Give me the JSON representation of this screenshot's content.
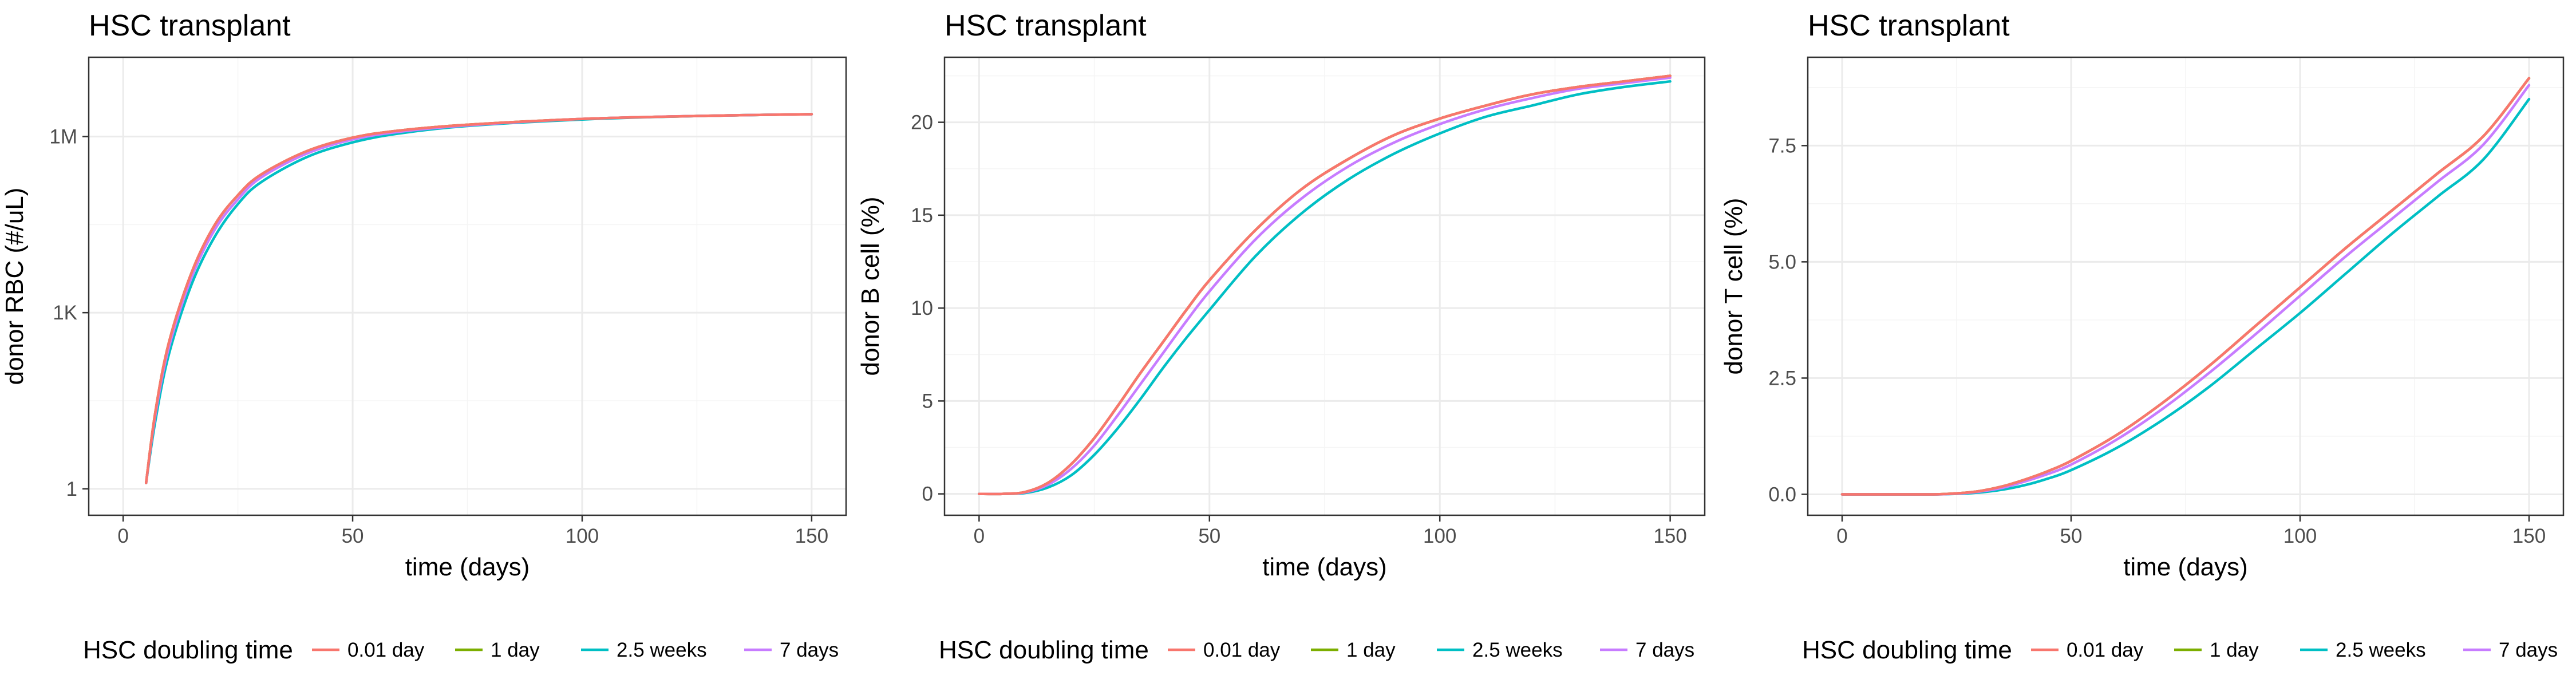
{
  "chart_data": [
    {
      "type": "line",
      "title": "HSC transplant",
      "xlabel": "time (days)",
      "ylabel": "donor RBC (#/uL)",
      "yscale": "log10",
      "xlim": [
        -7.5,
        157.5
      ],
      "ylim_log10": [
        -0.45,
        7.35
      ],
      "x_ticks": [
        0,
        50,
        100,
        150
      ],
      "x_tick_labels": [
        "0",
        "50",
        "100",
        "150"
      ],
      "y_ticks_log10": [
        0,
        3,
        6
      ],
      "y_tick_labels": [
        "1",
        "1K",
        "1M"
      ],
      "grid": true,
      "legend": {
        "position": "bottom",
        "title": "HSC doubling time",
        "entries": [
          "0.01 day",
          "1 day",
          "2.5 weeks",
          "7 days"
        ]
      },
      "series": [
        {
          "name": "0.01 day",
          "color": "#F8766D",
          "x": [
            5,
            7,
            10,
            15,
            20,
            25,
            30,
            40,
            50,
            60,
            75,
            100,
            125,
            150
          ],
          "log10_y": [
            0.1,
            1.3,
            2.5,
            3.7,
            4.5,
            5.0,
            5.35,
            5.75,
            5.98,
            6.1,
            6.2,
            6.3,
            6.35,
            6.38
          ]
        },
        {
          "name": "1 day",
          "color": "#7CAE00",
          "x": [
            5,
            7,
            10,
            15,
            20,
            25,
            30,
            40,
            50,
            60,
            75,
            100,
            125,
            150
          ],
          "log10_y": [
            0.1,
            1.3,
            2.5,
            3.7,
            4.5,
            5.0,
            5.35,
            5.75,
            5.98,
            6.1,
            6.2,
            6.3,
            6.35,
            6.38
          ]
        },
        {
          "name": "2.5 weeks",
          "color": "#00BFC4",
          "x": [
            5,
            7,
            10,
            15,
            20,
            25,
            30,
            40,
            50,
            60,
            75,
            100,
            125,
            150
          ],
          "log10_y": [
            0.1,
            1.15,
            2.3,
            3.5,
            4.3,
            4.85,
            5.22,
            5.65,
            5.9,
            6.05,
            6.18,
            6.29,
            6.35,
            6.38
          ]
        },
        {
          "name": "7 days",
          "color": "#C77CFF",
          "x": [
            5,
            7,
            10,
            15,
            20,
            25,
            30,
            40,
            50,
            60,
            75,
            100,
            125,
            150
          ],
          "log10_y": [
            0.1,
            1.25,
            2.42,
            3.62,
            4.42,
            4.93,
            5.3,
            5.71,
            5.95,
            6.08,
            6.19,
            6.3,
            6.35,
            6.38
          ]
        }
      ]
    },
    {
      "type": "line",
      "title": "HSC transplant",
      "xlabel": "time (days)",
      "ylabel": "donor B cell (%)",
      "xlim": [
        -7.5,
        157.5
      ],
      "ylim": [
        -1.15,
        23.5
      ],
      "x_ticks": [
        0,
        50,
        100,
        150
      ],
      "x_tick_labels": [
        "0",
        "50",
        "100",
        "150"
      ],
      "y_ticks": [
        0,
        5,
        10,
        15,
        20
      ],
      "y_tick_labels": [
        "0",
        "5",
        "10",
        "15",
        "20"
      ],
      "grid": true,
      "legend": {
        "position": "bottom",
        "title": "HSC doubling time",
        "entries": [
          "0.01 day",
          "1 day",
          "2.5 weeks",
          "7 days"
        ]
      },
      "series": [
        {
          "name": "0.01 day",
          "color": "#F8766D",
          "x": [
            0,
            5,
            10,
            15,
            20,
            25,
            30,
            35,
            40,
            45,
            50,
            60,
            70,
            80,
            90,
            100,
            110,
            120,
            130,
            140,
            150
          ],
          "y": [
            0,
            0,
            0.1,
            0.6,
            1.6,
            3.0,
            4.7,
            6.5,
            8.2,
            9.9,
            11.5,
            14.2,
            16.4,
            18.0,
            19.3,
            20.2,
            20.9,
            21.5,
            21.9,
            22.2,
            22.5
          ]
        },
        {
          "name": "1 day",
          "color": "#7CAE00",
          "x": [
            0,
            5,
            10,
            15,
            20,
            25,
            30,
            35,
            40,
            45,
            50,
            60,
            70,
            80,
            90,
            100,
            110,
            120,
            130,
            140,
            150
          ],
          "y": [
            0,
            0,
            0.1,
            0.6,
            1.6,
            3.0,
            4.7,
            6.5,
            8.2,
            9.9,
            11.5,
            14.2,
            16.4,
            18.0,
            19.3,
            20.2,
            20.9,
            21.5,
            21.9,
            22.2,
            22.5
          ]
        },
        {
          "name": "2.5 weeks",
          "color": "#00BFC4",
          "x": [
            0,
            5,
            10,
            15,
            20,
            25,
            30,
            35,
            40,
            45,
            50,
            60,
            70,
            80,
            90,
            100,
            110,
            120,
            130,
            140,
            150
          ],
          "y": [
            0,
            0,
            0.05,
            0.35,
            1.0,
            2.1,
            3.5,
            5.1,
            6.8,
            8.4,
            9.9,
            12.8,
            15.1,
            16.9,
            18.3,
            19.4,
            20.3,
            20.9,
            21.5,
            21.9,
            22.2
          ]
        },
        {
          "name": "7 days",
          "color": "#C77CFF",
          "x": [
            0,
            5,
            10,
            15,
            20,
            25,
            30,
            35,
            40,
            45,
            50,
            60,
            70,
            80,
            90,
            100,
            110,
            120,
            130,
            140,
            150
          ],
          "y": [
            0,
            0,
            0.08,
            0.5,
            1.35,
            2.6,
            4.2,
            5.9,
            7.6,
            9.3,
            10.9,
            13.7,
            15.9,
            17.6,
            18.9,
            19.9,
            20.7,
            21.3,
            21.8,
            22.1,
            22.4
          ]
        }
      ]
    },
    {
      "type": "line",
      "title": "HSC transplant",
      "xlabel": "time (days)",
      "ylabel": "donor T cell (%)",
      "xlim": [
        -7.5,
        157.5
      ],
      "ylim": [
        -0.45,
        9.4
      ],
      "x_ticks": [
        0,
        50,
        100,
        150
      ],
      "x_tick_labels": [
        "0",
        "50",
        "100",
        "150"
      ],
      "y_ticks": [
        0,
        2.5,
        5,
        7.5
      ],
      "y_tick_labels": [
        "0.0",
        "2.5",
        "5.0",
        "7.5"
      ],
      "grid": true,
      "legend": {
        "position": "bottom",
        "title": "HSC doubling time",
        "entries": [
          "0.01 day",
          "1 day",
          "2.5 weeks",
          "7 days"
        ]
      },
      "series": [
        {
          "name": "0.01 day",
          "color": "#F8766D",
          "x": [
            0,
            10,
            20,
            25,
            30,
            35,
            40,
            45,
            50,
            60,
            70,
            80,
            90,
            100,
            110,
            120,
            130,
            140,
            150
          ],
          "y": [
            0,
            0,
            0,
            0.02,
            0.07,
            0.17,
            0.32,
            0.5,
            0.72,
            1.28,
            1.97,
            2.75,
            3.6,
            4.45,
            5.3,
            6.1,
            6.9,
            7.7,
            8.95
          ]
        },
        {
          "name": "1 day",
          "color": "#7CAE00",
          "x": [
            0,
            10,
            20,
            25,
            30,
            35,
            40,
            45,
            50,
            60,
            70,
            80,
            90,
            100,
            110,
            120,
            130,
            140,
            150
          ],
          "y": [
            0,
            0,
            0,
            0.02,
            0.07,
            0.17,
            0.32,
            0.5,
            0.72,
            1.28,
            1.97,
            2.75,
            3.6,
            4.45,
            5.3,
            6.1,
            6.9,
            7.7,
            8.95
          ]
        },
        {
          "name": "2.5 weeks",
          "color": "#00BFC4",
          "x": [
            0,
            10,
            20,
            25,
            30,
            35,
            40,
            45,
            50,
            60,
            70,
            80,
            90,
            100,
            110,
            120,
            130,
            140,
            150
          ],
          "y": [
            0,
            0,
            0,
            0.01,
            0.04,
            0.1,
            0.2,
            0.34,
            0.52,
            1.0,
            1.6,
            2.3,
            3.1,
            3.9,
            4.75,
            5.6,
            6.4,
            7.2,
            8.5
          ]
        },
        {
          "name": "7 days",
          "color": "#C77CFF",
          "x": [
            0,
            10,
            20,
            25,
            30,
            35,
            40,
            45,
            50,
            60,
            70,
            80,
            90,
            100,
            110,
            120,
            130,
            140,
            150
          ],
          "y": [
            0,
            0,
            0,
            0.015,
            0.06,
            0.14,
            0.28,
            0.44,
            0.64,
            1.18,
            1.84,
            2.6,
            3.42,
            4.27,
            5.12,
            5.92,
            6.72,
            7.52,
            8.8
          ]
        }
      ]
    }
  ]
}
